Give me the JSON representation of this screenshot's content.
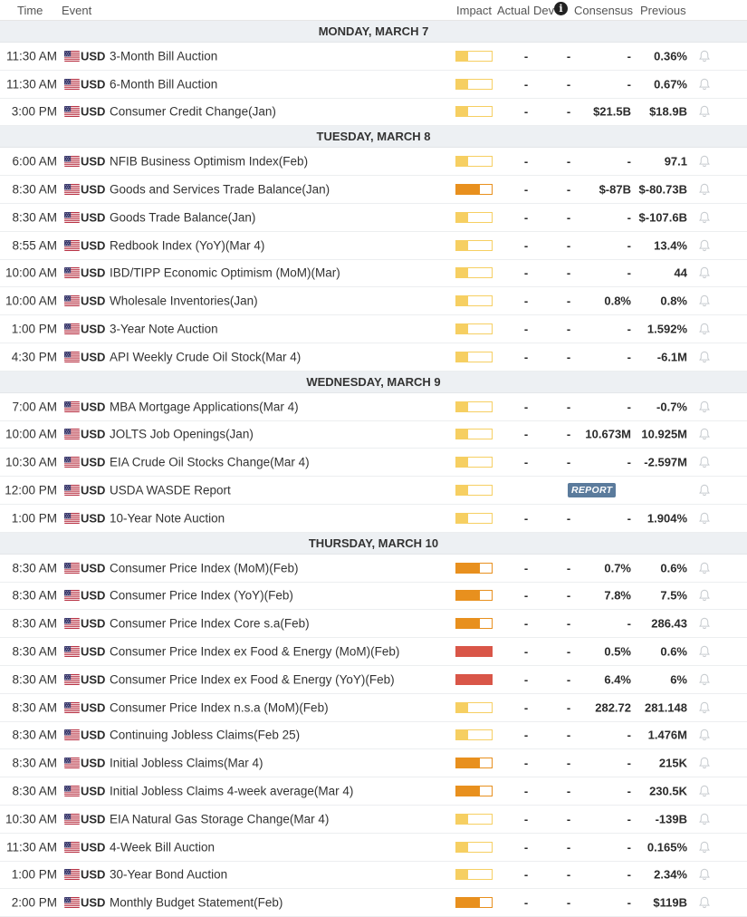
{
  "columns": {
    "time": "Time",
    "event": "Event",
    "impact": "Impact",
    "actual": "Actual",
    "dev": "Dev",
    "info_icon": "i",
    "consensus": "Consensus",
    "previous": "Previous"
  },
  "colors": {
    "low": "#f6cf62",
    "medium": "#e8901e",
    "high": "#d95648",
    "day_bg": "#edf0f3",
    "report": "#5b7b9c"
  },
  "days": [
    {
      "label": "MONDAY, MARCH 7",
      "events": [
        {
          "time": "11:30 AM",
          "currency": "USD",
          "name": "3-Month Bill Auction",
          "impact": "low",
          "actual": "-",
          "dev": "-",
          "consensus": "-",
          "previous": "0.36%"
        },
        {
          "time": "11:30 AM",
          "currency": "USD",
          "name": "6-Month Bill Auction",
          "impact": "low",
          "actual": "-",
          "dev": "-",
          "consensus": "-",
          "previous": "0.67%"
        },
        {
          "time": "3:00 PM",
          "currency": "USD",
          "name": "Consumer Credit Change(Jan)",
          "impact": "low",
          "actual": "-",
          "dev": "-",
          "consensus": "$21.5B",
          "previous": "$18.9B"
        }
      ]
    },
    {
      "label": "TUESDAY, MARCH 8",
      "events": [
        {
          "time": "6:00 AM",
          "currency": "USD",
          "name": "NFIB Business Optimism Index(Feb)",
          "impact": "low",
          "actual": "-",
          "dev": "-",
          "consensus": "-",
          "previous": "97.1"
        },
        {
          "time": "8:30 AM",
          "currency": "USD",
          "name": "Goods and Services Trade Balance(Jan)",
          "impact": "medium",
          "actual": "-",
          "dev": "-",
          "consensus": "$-87B",
          "previous": "$-80.73B"
        },
        {
          "time": "8:30 AM",
          "currency": "USD",
          "name": "Goods Trade Balance(Jan)",
          "impact": "low",
          "actual": "-",
          "dev": "-",
          "consensus": "-",
          "previous": "$-107.6B"
        },
        {
          "time": "8:55 AM",
          "currency": "USD",
          "name": "Redbook Index (YoY)(Mar 4)",
          "impact": "low",
          "actual": "-",
          "dev": "-",
          "consensus": "-",
          "previous": "13.4%"
        },
        {
          "time": "10:00 AM",
          "currency": "USD",
          "name": "IBD/TIPP Economic Optimism (MoM)(Mar)",
          "impact": "low",
          "actual": "-",
          "dev": "-",
          "consensus": "-",
          "previous": "44"
        },
        {
          "time": "10:00 AM",
          "currency": "USD",
          "name": "Wholesale Inventories(Jan)",
          "impact": "low",
          "actual": "-",
          "dev": "-",
          "consensus": "0.8%",
          "previous": "0.8%"
        },
        {
          "time": "1:00 PM",
          "currency": "USD",
          "name": "3-Year Note Auction",
          "impact": "low",
          "actual": "-",
          "dev": "-",
          "consensus": "-",
          "previous": "1.592%"
        },
        {
          "time": "4:30 PM",
          "currency": "USD",
          "name": "API Weekly Crude Oil Stock(Mar 4)",
          "impact": "low",
          "actual": "-",
          "dev": "-",
          "consensus": "-",
          "previous": "-6.1M"
        }
      ]
    },
    {
      "label": "WEDNESDAY, MARCH 9",
      "events": [
        {
          "time": "7:00 AM",
          "currency": "USD",
          "name": "MBA Mortgage Applications(Mar 4)",
          "impact": "low",
          "actual": "-",
          "dev": "-",
          "consensus": "-",
          "previous": "-0.7%"
        },
        {
          "time": "10:00 AM",
          "currency": "USD",
          "name": "JOLTS Job Openings(Jan)",
          "impact": "low",
          "actual": "-",
          "dev": "-",
          "consensus": "10.673M",
          "previous": "10.925M"
        },
        {
          "time": "10:30 AM",
          "currency": "USD",
          "name": "EIA Crude Oil Stocks Change(Mar 4)",
          "impact": "low",
          "actual": "-",
          "dev": "-",
          "consensus": "-",
          "previous": "-2.597M"
        },
        {
          "time": "12:00 PM",
          "currency": "USD",
          "name": "USDA WASDE Report",
          "impact": "low",
          "report": "REPORT"
        },
        {
          "time": "1:00 PM",
          "currency": "USD",
          "name": "10-Year Note Auction",
          "impact": "low",
          "actual": "-",
          "dev": "-",
          "consensus": "-",
          "previous": "1.904%"
        }
      ]
    },
    {
      "label": "THURSDAY, MARCH 10",
      "events": [
        {
          "time": "8:30 AM",
          "currency": "USD",
          "name": "Consumer Price Index (MoM)(Feb)",
          "impact": "medium",
          "actual": "-",
          "dev": "-",
          "consensus": "0.7%",
          "previous": "0.6%"
        },
        {
          "time": "8:30 AM",
          "currency": "USD",
          "name": "Consumer Price Index (YoY)(Feb)",
          "impact": "medium",
          "actual": "-",
          "dev": "-",
          "consensus": "7.8%",
          "previous": "7.5%"
        },
        {
          "time": "8:30 AM",
          "currency": "USD",
          "name": "Consumer Price Index Core s.a(Feb)",
          "impact": "medium",
          "actual": "-",
          "dev": "-",
          "consensus": "-",
          "previous": "286.43"
        },
        {
          "time": "8:30 AM",
          "currency": "USD",
          "name": "Consumer Price Index ex Food & Energy (MoM)(Feb)",
          "impact": "high",
          "actual": "-",
          "dev": "-",
          "consensus": "0.5%",
          "previous": "0.6%"
        },
        {
          "time": "8:30 AM",
          "currency": "USD",
          "name": "Consumer Price Index ex Food & Energy (YoY)(Feb)",
          "impact": "high",
          "actual": "-",
          "dev": "-",
          "consensus": "6.4%",
          "previous": "6%"
        },
        {
          "time": "8:30 AM",
          "currency": "USD",
          "name": "Consumer Price Index n.s.a (MoM)(Feb)",
          "impact": "low",
          "actual": "-",
          "dev": "-",
          "consensus": "282.72",
          "previous": "281.148"
        },
        {
          "time": "8:30 AM",
          "currency": "USD",
          "name": "Continuing Jobless Claims(Feb 25)",
          "impact": "low",
          "actual": "-",
          "dev": "-",
          "consensus": "-",
          "previous": "1.476M"
        },
        {
          "time": "8:30 AM",
          "currency": "USD",
          "name": "Initial Jobless Claims(Mar 4)",
          "impact": "medium",
          "actual": "-",
          "dev": "-",
          "consensus": "-",
          "previous": "215K"
        },
        {
          "time": "8:30 AM",
          "currency": "USD",
          "name": "Initial Jobless Claims 4-week average(Mar 4)",
          "impact": "medium",
          "actual": "-",
          "dev": "-",
          "consensus": "-",
          "previous": "230.5K"
        },
        {
          "time": "10:30 AM",
          "currency": "USD",
          "name": "EIA Natural Gas Storage Change(Mar 4)",
          "impact": "low",
          "actual": "-",
          "dev": "-",
          "consensus": "-",
          "previous": "-139B"
        },
        {
          "time": "11:30 AM",
          "currency": "USD",
          "name": "4-Week Bill Auction",
          "impact": "low",
          "actual": "-",
          "dev": "-",
          "consensus": "-",
          "previous": "0.165%"
        },
        {
          "time": "1:00 PM",
          "currency": "USD",
          "name": "30-Year Bond Auction",
          "impact": "low",
          "actual": "-",
          "dev": "-",
          "consensus": "-",
          "previous": "2.34%"
        },
        {
          "time": "2:00 PM",
          "currency": "USD",
          "name": "Monthly Budget Statement(Feb)",
          "impact": "medium",
          "actual": "-",
          "dev": "-",
          "consensus": "-",
          "previous": "$119B"
        }
      ]
    }
  ]
}
